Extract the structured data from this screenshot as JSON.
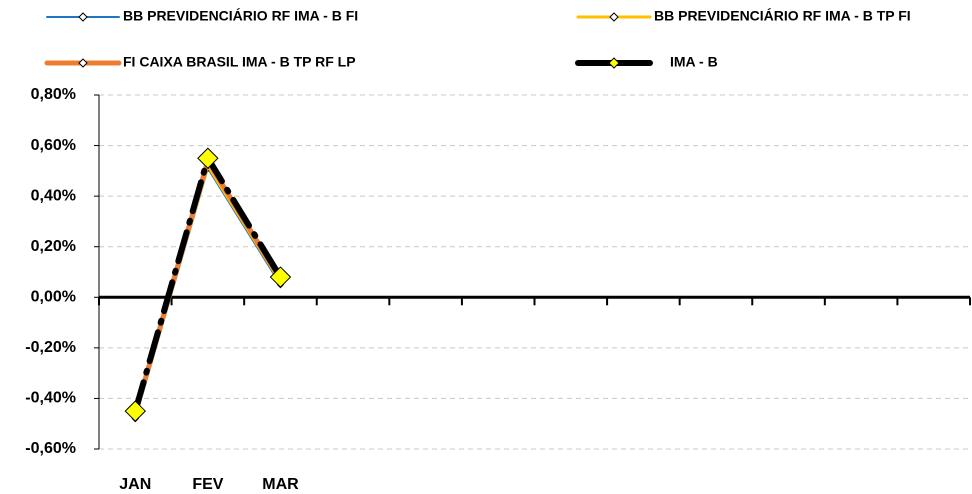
{
  "chart_data": {
    "type": "line",
    "categories": [
      "JAN",
      "FEV",
      "MAR",
      null,
      null,
      null,
      null,
      null,
      null,
      null,
      null,
      null
    ],
    "series": [
      {
        "name": "BB PREVIDENCIÁRIO RF IMA - B FI",
        "color": "#1f77c4",
        "width": 2,
        "values": [
          -0.48,
          0.51,
          0.05,
          null,
          null,
          null,
          null,
          null,
          null,
          null,
          null,
          null
        ]
      },
      {
        "name": "BB PREVIDENCIÁRIO RF IMA - B TP FI",
        "color": "#ffc000",
        "width": 3,
        "values": [
          -0.47,
          0.52,
          0.06,
          null,
          null,
          null,
          null,
          null,
          null,
          null,
          null,
          null
        ]
      },
      {
        "name": "FI CAIXA BRASIL IMA - B TP RF LP",
        "color": "#ed7d31",
        "width": 5,
        "values": [
          -0.46,
          0.54,
          0.07,
          null,
          null,
          null,
          null,
          null,
          null,
          null,
          null,
          null
        ]
      },
      {
        "name": "IMA - B",
        "color": "#000000",
        "width": 6,
        "values": [
          -0.45,
          0.55,
          0.08,
          null,
          null,
          null,
          null,
          null,
          null,
          null,
          null,
          null
        ]
      }
    ],
    "ylim": [
      -0.6,
      0.8
    ],
    "yticks": [
      {
        "value": -0.6,
        "label": "-0,60%"
      },
      {
        "value": -0.4,
        "label": "-0,40%"
      },
      {
        "value": -0.2,
        "label": "-0,20%"
      },
      {
        "value": 0,
        "label": "0,00%"
      },
      {
        "value": 0.2,
        "label": "0,20%"
      },
      {
        "value": 0.4,
        "label": "0,40%"
      },
      {
        "value": 0.6,
        "label": "0,60%"
      },
      {
        "value": 0.8,
        "label": "0,80%"
      }
    ],
    "grid": true,
    "legend": "top"
  }
}
